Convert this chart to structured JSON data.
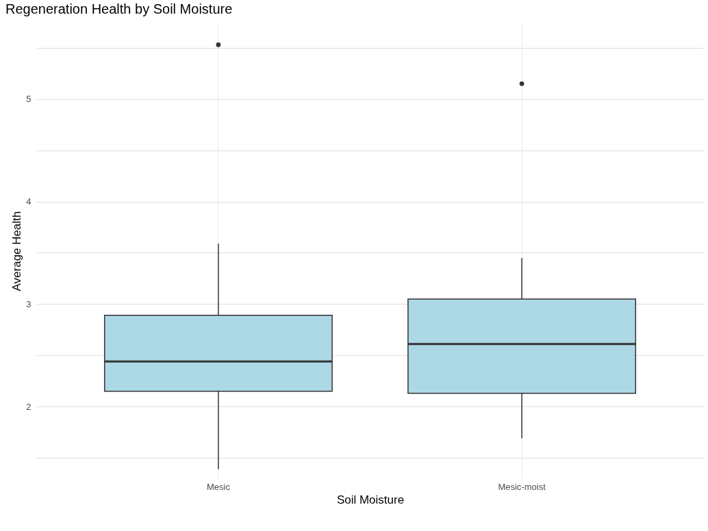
{
  "chart_data": {
    "type": "box",
    "title": "Regeneration Health by Soil Moisture",
    "xlabel": "Soil Moisture",
    "ylabel": "Average Health",
    "categories": [
      "Mesic",
      "Mesic-moist"
    ],
    "series": [
      {
        "color": "#add8e6",
        "boxes": [
          {
            "low": 1.39,
            "q1": 2.15,
            "median": 2.44,
            "q3": 2.89,
            "high": 3.59,
            "outliers": [
              5.53
            ]
          },
          {
            "low": 1.69,
            "q1": 2.13,
            "median": 2.61,
            "q3": 3.05,
            "high": 3.45,
            "outliers": [
              5.15
            ]
          }
        ]
      }
    ],
    "ylim": [
      1.3,
      5.74
    ],
    "yticks": [
      {
        "value": 1.5,
        "label": null
      },
      2,
      {
        "value": 2.5,
        "label": null
      },
      3,
      {
        "value": 3.5,
        "label": null
      },
      4,
      {
        "value": 4.5,
        "label": null
      },
      5,
      {
        "value": 5.5,
        "label": null
      }
    ],
    "grid": true
  }
}
